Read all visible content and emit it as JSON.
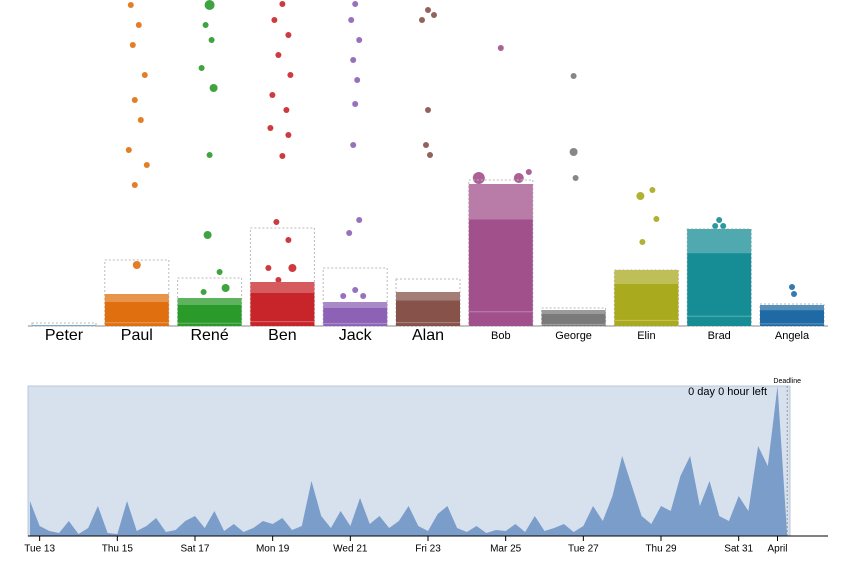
{
  "chart_data": [
    {
      "type": "bar",
      "categories": [
        "Peter",
        "Paul",
        "René",
        "Ben",
        "Jack",
        "Alan",
        "Bob",
        "George",
        "Elin",
        "Brad",
        "Angela"
      ],
      "values": [
        1,
        32,
        28,
        44,
        24,
        34,
        142,
        16,
        56,
        97,
        21
      ],
      "targets": [
        3,
        66,
        48,
        98,
        58,
        47,
        146,
        18,
        56,
        97,
        22
      ],
      "colors": [
        "#1f77b4",
        "#e0700f",
        "#2a9a2a",
        "#c8252a",
        "#8d62b6",
        "#86524a",
        "#a2508c",
        "#7a7a7a",
        "#a9aa1e",
        "#168d95",
        "#1f6aa4"
      ],
      "ylim": [
        0,
        160
      ]
    },
    {
      "type": "area",
      "annotation": "0 day 0 hour left",
      "deadline_label": "Deadline",
      "x": [
        12.75,
        13,
        13.25,
        13.5,
        13.75,
        14,
        14.25,
        14.5,
        14.75,
        15,
        15.25,
        15.5,
        15.75,
        16,
        16.25,
        16.5,
        16.75,
        17,
        17.25,
        17.5,
        17.75,
        18,
        18.25,
        18.5,
        18.75,
        19,
        19.25,
        19.5,
        19.75,
        20,
        20.25,
        20.5,
        20.75,
        21,
        21.25,
        21.5,
        21.75,
        22,
        22.25,
        22.5,
        22.75,
        23,
        23.25,
        23.5,
        23.75,
        24,
        24.25,
        24.5,
        24.75,
        25,
        25.25,
        25.5,
        25.75,
        26,
        26.25,
        26.5,
        26.75,
        27,
        27.25,
        27.5,
        27.75,
        28,
        28.25,
        28.5,
        28.75,
        29,
        29.25,
        29.5,
        29.75,
        30,
        30.25,
        30.5,
        30.75,
        31,
        31.25,
        31.5,
        31.75,
        32,
        32.25
      ],
      "values": [
        35,
        10,
        5,
        3,
        15,
        2,
        8,
        30,
        3,
        2,
        35,
        5,
        10,
        18,
        4,
        6,
        15,
        20,
        8,
        25,
        5,
        12,
        4,
        8,
        15,
        12,
        18,
        6,
        10,
        55,
        20,
        8,
        25,
        10,
        38,
        12,
        20,
        8,
        15,
        30,
        10,
        5,
        22,
        30,
        8,
        4,
        10,
        3,
        6,
        5,
        12,
        4,
        20,
        5,
        8,
        12,
        4,
        10,
        30,
        15,
        40,
        80,
        50,
        20,
        12,
        30,
        25,
        60,
        80,
        30,
        55,
        20,
        15,
        40,
        25,
        90,
        70,
        150,
        0
      ],
      "color": "#7b9dc9",
      "xlim": [
        12.7,
        33.3
      ],
      "ylim": [
        0,
        150
      ],
      "deadline": 32.25,
      "xticks": [
        {
          "value": 13,
          "label": "Tue 13"
        },
        {
          "value": 15,
          "label": "Thu 15"
        },
        {
          "value": 17,
          "label": "Sat 17"
        },
        {
          "value": 19,
          "label": "Mon 19"
        },
        {
          "value": 21,
          "label": "Wed 21"
        },
        {
          "value": 23,
          "label": "Fri 23"
        },
        {
          "value": 25,
          "label": "Mar 25"
        },
        {
          "value": 27,
          "label": "Tue 27"
        },
        {
          "value": 29,
          "label": "Thu 29"
        },
        {
          "value": 31,
          "label": "Sat 31"
        },
        {
          "value": 32,
          "label": "April"
        }
      ]
    }
  ]
}
